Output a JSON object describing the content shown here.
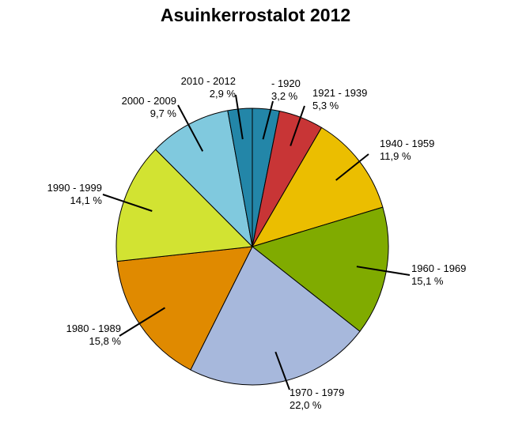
{
  "chart_data": {
    "type": "pie",
    "title": "Asuinkerrostalot 2012",
    "slices": [
      {
        "label": "- 1920",
        "value_text": "3,2 %",
        "value": 3.2,
        "color": "#2386a8"
      },
      {
        "label": "1921 - 1939",
        "value_text": "5,3 %",
        "value": 5.3,
        "color": "#c83536"
      },
      {
        "label": "1940 - 1959",
        "value_text": "11,9 %",
        "value": 11.9,
        "color": "#ebbe00"
      },
      {
        "label": "1960 - 1969",
        "value_text": "15,1 %",
        "value": 15.1,
        "color": "#80ab00"
      },
      {
        "label": "1970 - 1979",
        "value_text": "22,0 %",
        "value": 22.0,
        "color": "#a7b8dc"
      },
      {
        "label": "1980 - 1989",
        "value_text": "15,8 %",
        "value": 15.8,
        "color": "#e08a00"
      },
      {
        "label": "1990 - 1999",
        "value_text": "14,1 %",
        "value": 14.1,
        "color": "#d2e332"
      },
      {
        "label": "2000 - 2009",
        "value_text": "9,7 %",
        "value": 9.7,
        "color": "#80c9de"
      },
      {
        "label": "2010 - 2012",
        "value_text": "2,9 %",
        "value": 2.9,
        "color": "#2386a8"
      }
    ]
  }
}
